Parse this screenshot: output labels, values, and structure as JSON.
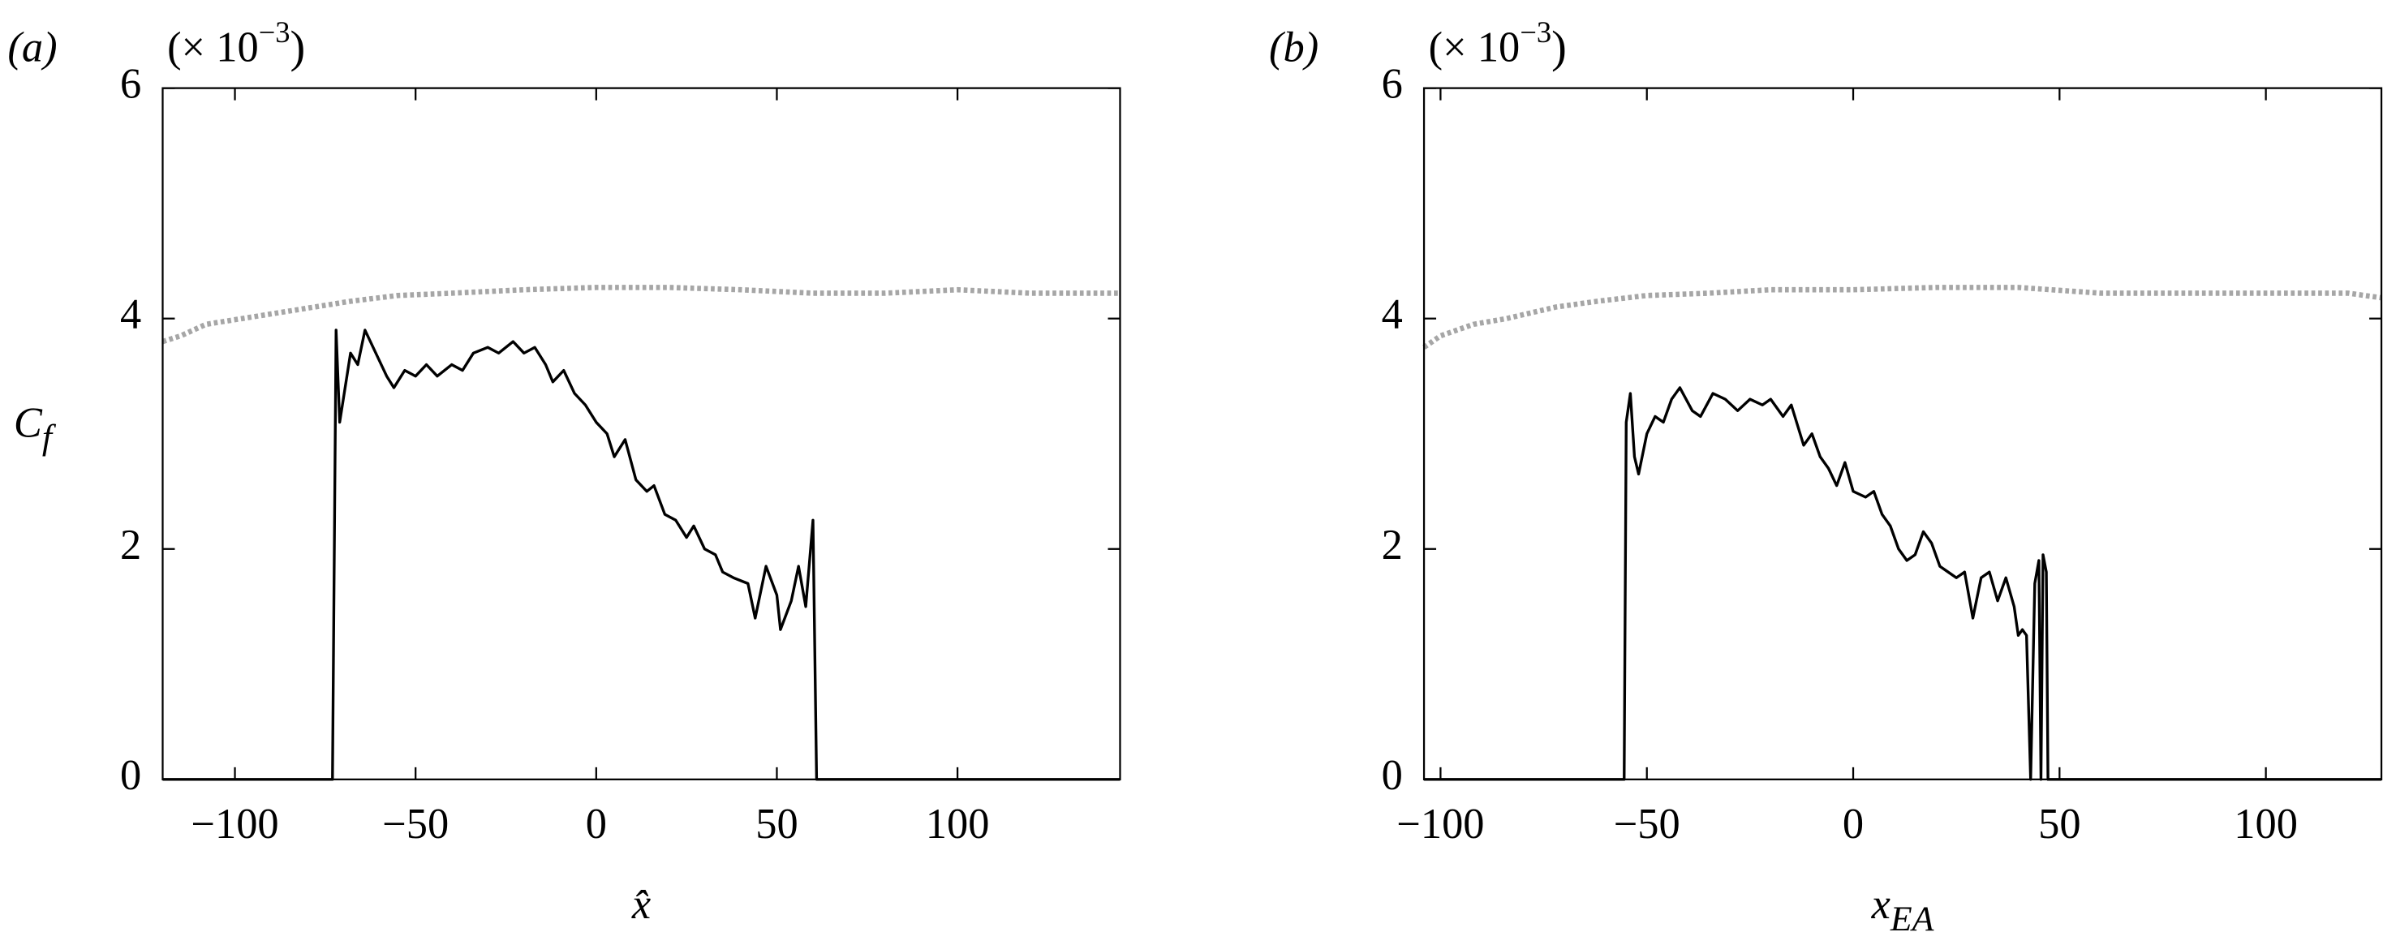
{
  "chart_data": [
    {
      "type": "line",
      "panel_label": "(a)",
      "multiplier": {
        "base": "(× 10",
        "sup": "−3",
        "tail": ")"
      },
      "ylabel": {
        "base": "C",
        "sub": "f"
      },
      "xlabel": {
        "base": "x̂"
      },
      "xlim": [
        -120,
        145
      ],
      "ylim": [
        0,
        6
      ],
      "xticks": [
        {
          "value": -100,
          "label": "−100"
        },
        {
          "value": -50,
          "label": "−50"
        },
        0,
        50,
        100
      ],
      "yticks": [
        0,
        2,
        4,
        6
      ],
      "series": [
        {
          "color": "#a6a6a6",
          "style": "dotted",
          "x": [
            -120,
            -115,
            -108,
            -98,
            -88,
            -78,
            -68,
            -55,
            -40,
            -20,
            0,
            20,
            40,
            60,
            80,
            100,
            120,
            145
          ],
          "values": [
            3.8,
            3.85,
            3.95,
            4.0,
            4.05,
            4.1,
            4.15,
            4.2,
            4.22,
            4.25,
            4.27,
            4.27,
            4.25,
            4.22,
            4.22,
            4.25,
            4.22,
            4.22
          ]
        },
        {
          "color": "#000000",
          "style": "solid",
          "x": [
            -120,
            -73,
            -72,
            -71,
            -68,
            -66,
            -64,
            -61,
            -58,
            -56,
            -53,
            -50,
            -47,
            -44,
            -40,
            -37,
            -34,
            -30,
            -27,
            -23,
            -20,
            -17,
            -14,
            -12,
            -9,
            -6,
            -3,
            0,
            3,
            5,
            8,
            11,
            14,
            16,
            19,
            22,
            25,
            27,
            30,
            33,
            35,
            38,
            42,
            44,
            47,
            50,
            51,
            54,
            56,
            58,
            60,
            61,
            145
          ],
          "values": [
            0,
            0,
            3.9,
            3.1,
            3.7,
            3.6,
            3.9,
            3.7,
            3.5,
            3.4,
            3.55,
            3.5,
            3.6,
            3.5,
            3.6,
            3.55,
            3.7,
            3.75,
            3.7,
            3.8,
            3.7,
            3.75,
            3.6,
            3.45,
            3.55,
            3.35,
            3.25,
            3.1,
            3.0,
            2.8,
            2.95,
            2.6,
            2.5,
            2.55,
            2.3,
            2.25,
            2.1,
            2.2,
            2.0,
            1.95,
            1.8,
            1.75,
            1.7,
            1.4,
            1.85,
            1.6,
            1.3,
            1.55,
            1.85,
            1.5,
            2.25,
            0,
            0
          ]
        }
      ]
    },
    {
      "type": "line",
      "panel_label": "(b)",
      "multiplier": {
        "base": "(× 10",
        "sup": "−3",
        "tail": ")"
      },
      "xlabel": {
        "base": "x",
        "sub": "EA"
      },
      "xlim": [
        -104,
        128
      ],
      "ylim": [
        0,
        6
      ],
      "xticks": [
        {
          "value": -100,
          "label": "−100"
        },
        {
          "value": -50,
          "label": "−50"
        },
        0,
        50,
        100
      ],
      "yticks": [
        0,
        2,
        4,
        6
      ],
      "series": [
        {
          "color": "#a6a6a6",
          "style": "dotted",
          "x": [
            -104,
            -100,
            -92,
            -84,
            -72,
            -62,
            -50,
            -35,
            -20,
            0,
            20,
            40,
            60,
            80,
            100,
            120,
            128
          ],
          "values": [
            3.75,
            3.85,
            3.95,
            4.0,
            4.1,
            4.15,
            4.2,
            4.22,
            4.25,
            4.25,
            4.27,
            4.27,
            4.22,
            4.22,
            4.22,
            4.22,
            4.18
          ]
        },
        {
          "color": "#000000",
          "style": "solid",
          "x": [
            -104,
            -55.5,
            -55,
            -54,
            -53,
            -52,
            -50,
            -48,
            -46,
            -44,
            -42,
            -39,
            -37,
            -34,
            -31,
            -28,
            -25,
            -22,
            -20,
            -17,
            -15,
            -12,
            -10,
            -8,
            -6,
            -4,
            -2,
            0,
            3,
            5,
            7,
            9,
            11,
            13,
            15,
            17,
            19,
            21,
            23,
            25,
            27,
            29,
            31,
            33,
            35,
            37,
            39,
            40,
            41,
            42,
            43,
            44,
            45,
            45.5,
            46,
            46.8,
            47.2,
            128
          ],
          "values": [
            0,
            0,
            3.1,
            3.35,
            2.8,
            2.65,
            3.0,
            3.15,
            3.1,
            3.3,
            3.4,
            3.2,
            3.15,
            3.35,
            3.3,
            3.2,
            3.3,
            3.25,
            3.3,
            3.15,
            3.25,
            2.9,
            3.0,
            2.8,
            2.7,
            2.55,
            2.75,
            2.5,
            2.45,
            2.5,
            2.3,
            2.2,
            2.0,
            1.9,
            1.95,
            2.15,
            2.05,
            1.85,
            1.8,
            1.75,
            1.8,
            1.4,
            1.75,
            1.8,
            1.55,
            1.75,
            1.5,
            1.25,
            1.3,
            1.25,
            0,
            1.7,
            1.9,
            0,
            1.95,
            1.8,
            0,
            0
          ]
        }
      ]
    }
  ]
}
